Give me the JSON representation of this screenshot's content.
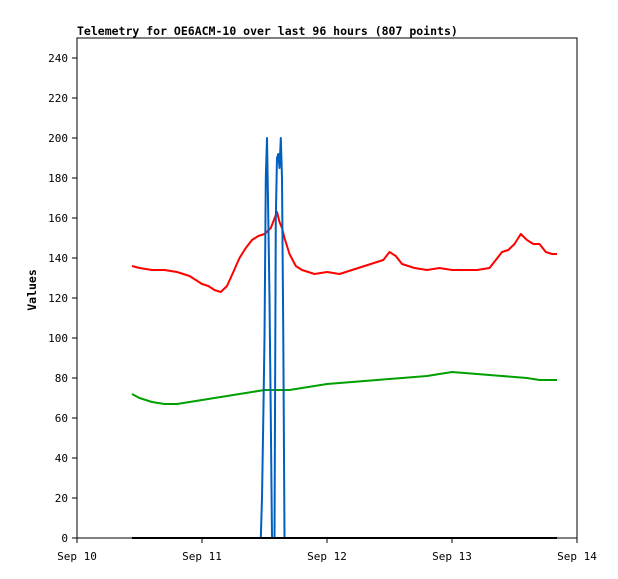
{
  "chart_data": {
    "type": "line",
    "title": "Telemetry for OE6ACM-10 over last 96 hours (807 points)",
    "ylabel": "Values",
    "xlabel": "",
    "ylim": [
      0,
      250
    ],
    "xlim": [
      0,
      4
    ],
    "x_tick_labels": [
      "Sep 10",
      "Sep 11",
      "Sep 12",
      "Sep 13",
      "Sep 14"
    ],
    "y_ticks": [
      0,
      20,
      40,
      60,
      80,
      100,
      120,
      140,
      160,
      180,
      200,
      220,
      240
    ],
    "grid": false,
    "legend": "none",
    "series": [
      {
        "color": "#ff0000",
        "x_unit": "days since Sep 10",
        "x": [
          0.44,
          0.5,
          0.6,
          0.7,
          0.8,
          0.9,
          0.95,
          1.0,
          1.05,
          1.1,
          1.15,
          1.2,
          1.25,
          1.3,
          1.35,
          1.4,
          1.45,
          1.5,
          1.55,
          1.6,
          1.62,
          1.64,
          1.66,
          1.7,
          1.75,
          1.8,
          1.85,
          1.9,
          2.0,
          2.1,
          2.2,
          2.3,
          2.4,
          2.45,
          2.5,
          2.55,
          2.6,
          2.7,
          2.8,
          2.9,
          3.0,
          3.1,
          3.2,
          3.3,
          3.35,
          3.4,
          3.45,
          3.5,
          3.55,
          3.6,
          3.65,
          3.7,
          3.75,
          3.8,
          3.84
        ],
        "values": [
          136,
          135,
          134,
          134,
          133,
          131,
          129,
          127,
          126,
          124,
          123,
          126,
          133,
          140,
          145,
          149,
          151,
          152,
          155,
          163,
          158,
          155,
          150,
          142,
          136,
          134,
          133,
          132,
          133,
          132,
          134,
          136,
          138,
          139,
          143,
          141,
          137,
          135,
          134,
          135,
          134,
          134,
          134,
          135,
          139,
          143,
          144,
          147,
          152,
          149,
          147,
          147,
          143,
          142,
          142
        ]
      },
      {
        "color": "#00a000",
        "x_unit": "days since Sep 10",
        "x": [
          0.44,
          0.5,
          0.6,
          0.7,
          0.8,
          0.9,
          1.0,
          1.1,
          1.2,
          1.3,
          1.4,
          1.5,
          1.6,
          1.7,
          1.8,
          1.9,
          2.0,
          2.2,
          2.4,
          2.6,
          2.8,
          3.0,
          3.2,
          3.4,
          3.6,
          3.7,
          3.8,
          3.84
        ],
        "values": [
          72,
          70,
          68,
          67,
          67,
          68,
          69,
          70,
          71,
          72,
          73,
          74,
          74,
          74,
          75,
          76,
          77,
          78,
          79,
          80,
          81,
          83,
          82,
          81,
          80,
          79,
          79,
          79
        ]
      },
      {
        "color": "#0060c0",
        "x_unit": "days since Sep 10",
        "x": [
          0.44,
          1.45,
          1.47,
          1.48,
          1.49,
          1.5,
          1.51,
          1.52,
          1.53,
          1.54,
          1.55,
          1.56,
          1.57,
          1.58,
          1.59,
          1.6,
          1.61,
          1.62,
          1.63,
          1.64,
          1.65,
          1.66,
          1.67,
          1.68,
          1.69,
          1.7,
          1.72,
          3.84
        ],
        "values": [
          0,
          0,
          0,
          20,
          60,
          100,
          180,
          200,
          160,
          120,
          60,
          0,
          0,
          0,
          160,
          190,
          192,
          185,
          200,
          180,
          100,
          0,
          0,
          0,
          0,
          0,
          0,
          0
        ]
      },
      {
        "color": "#000000",
        "x_unit": "days since Sep 10",
        "x": [
          0.44,
          3.84
        ],
        "values": [
          0,
          0
        ]
      }
    ]
  }
}
